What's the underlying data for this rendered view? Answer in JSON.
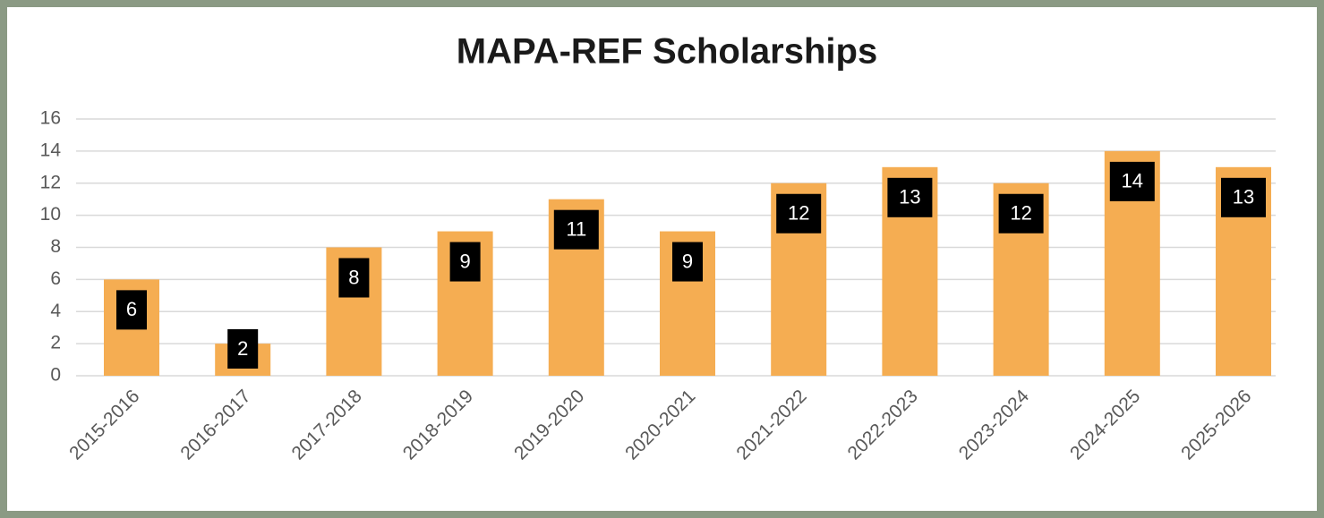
{
  "chart_data": {
    "type": "bar",
    "title": "MAPA-REF Scholarships",
    "categories": [
      "2015-2016",
      "2016-2017",
      "2017-2018",
      "2018-2019",
      "2019-2020",
      "2020-2021",
      "2021-2022",
      "2022-2023",
      "2023-2024",
      "2024-2025",
      "2025-2026"
    ],
    "values": [
      6,
      2,
      8,
      9,
      11,
      9,
      12,
      13,
      12,
      14,
      13
    ],
    "color": "#f5ad52",
    "ylim": [
      0,
      16
    ],
    "yticks": [
      0,
      2,
      4,
      6,
      8,
      10,
      12,
      14,
      16
    ],
    "grid": true
  }
}
